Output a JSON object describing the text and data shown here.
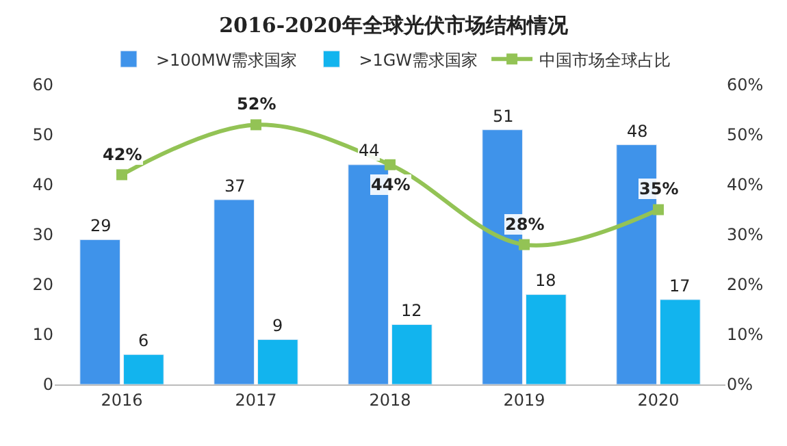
{
  "chart_data": {
    "type": "bar",
    "title": "2016-2020年全球光伏市场结构情况",
    "categories": [
      "2016",
      "2017",
      "2018",
      "2019",
      "2020"
    ],
    "series": [
      {
        "name": ">100MW需求国家",
        "color": "#3f93ea",
        "values": [
          29,
          37,
          44,
          51,
          48
        ],
        "data_labels": true
      },
      {
        "name": ">1GW需求国家",
        "color": "#12b4ee",
        "values": [
          6,
          9,
          12,
          18,
          17
        ],
        "data_labels": true
      },
      {
        "name": "中国市场全球占比",
        "type": "line",
        "axis": "y2",
        "color": "#93c355",
        "values": [
          42,
          52,
          44,
          28,
          35
        ],
        "value_labels": [
          "42%",
          "52%",
          "44%",
          "28%",
          "35%"
        ],
        "marker": "square"
      }
    ],
    "ylim": [
      0,
      60
    ],
    "yticks": [
      0,
      10,
      20,
      30,
      40,
      50,
      60
    ],
    "y2lim": [
      0,
      60
    ],
    "y2ticks": [
      {
        "value": 0,
        "label": "0%"
      },
      {
        "value": 10,
        "label": "10%"
      },
      {
        "value": 20,
        "label": "20%"
      },
      {
        "value": 30,
        "label": "30%"
      },
      {
        "value": 40,
        "label": "40%"
      },
      {
        "value": 50,
        "label": "50%"
      },
      {
        "value": 60,
        "label": "60%"
      }
    ],
    "legend": "top"
  }
}
